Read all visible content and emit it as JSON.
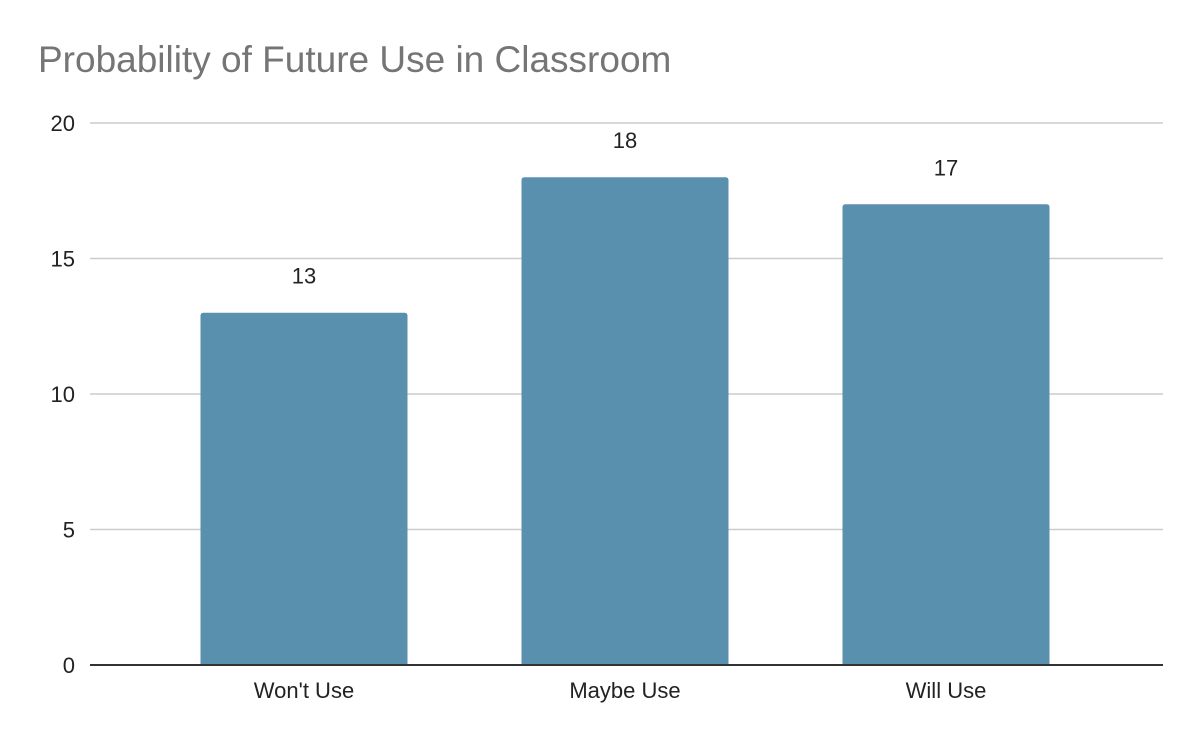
{
  "chart_data": {
    "type": "bar",
    "title": "Probability of Future Use in Classroom",
    "categories": [
      "Won't Use",
      "Maybe Use",
      "Will Use"
    ],
    "values": [
      13,
      18,
      17
    ],
    "data_labels": [
      "13",
      "18",
      "17"
    ],
    "yticks": [
      "0",
      "5",
      "10",
      "15",
      "20"
    ],
    "ylim": [
      0,
      20
    ],
    "xlabel": "",
    "ylabel": "",
    "grid": true,
    "legend": "none",
    "bar_color": "#5990ae",
    "grid_color": "#cccccc",
    "axis_color": "#333333"
  }
}
